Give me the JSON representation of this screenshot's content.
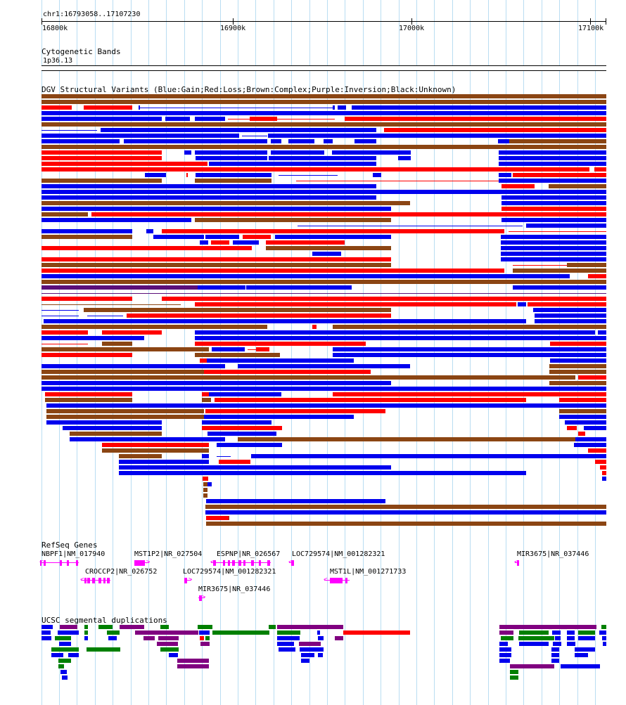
{
  "position": "chr1:16793058..17107230",
  "ruler": {
    "ticks": [
      "16800k",
      "16900k",
      "17000k",
      "17100k"
    ]
  },
  "colors": {
    "gain": "#0000ee",
    "loss": "#ff0000",
    "complex": "#8b4513",
    "inversion": "#5b0f7a",
    "gene": "#ff00ff",
    "segdup_green": "#008000",
    "segdup_purple": "#800080",
    "gridline": "#b9ddf2"
  },
  "tracks": {
    "cytoband": {
      "title": "Cytogenetic Bands",
      "band": "1p36.13"
    },
    "dgv": {
      "title": "DGV Structural Variants (Blue:Gain;Red:Loss;Brown:Complex;Purple:Inversion;Black:Unknown)"
    },
    "refseq": {
      "title": "RefSeq Genes",
      "genes": [
        {
          "label": "NBPF1|NM_017940",
          "strand": "minus"
        },
        {
          "label": "MST1P2|NR_027504",
          "strand": "plus"
        },
        {
          "label": "ESPNP|NR_026567",
          "strand": "minus"
        },
        {
          "label": "LOC729574|NM_001282321",
          "strand": "minus"
        },
        {
          "label": "MIR3675|NR_037446",
          "strand": "minus"
        },
        {
          "label": "CROCCP2|NR_026752",
          "strand": "minus"
        },
        {
          "label": "LOC729574|NM_001282321",
          "strand": "plus"
        },
        {
          "label": "MST1L|NM_001271733",
          "strand": "minus"
        },
        {
          "label": "MIR3675|NR_037446",
          "strand": "plus"
        }
      ]
    },
    "segdup": {
      "title": "UCSC segmental duplications"
    }
  }
}
